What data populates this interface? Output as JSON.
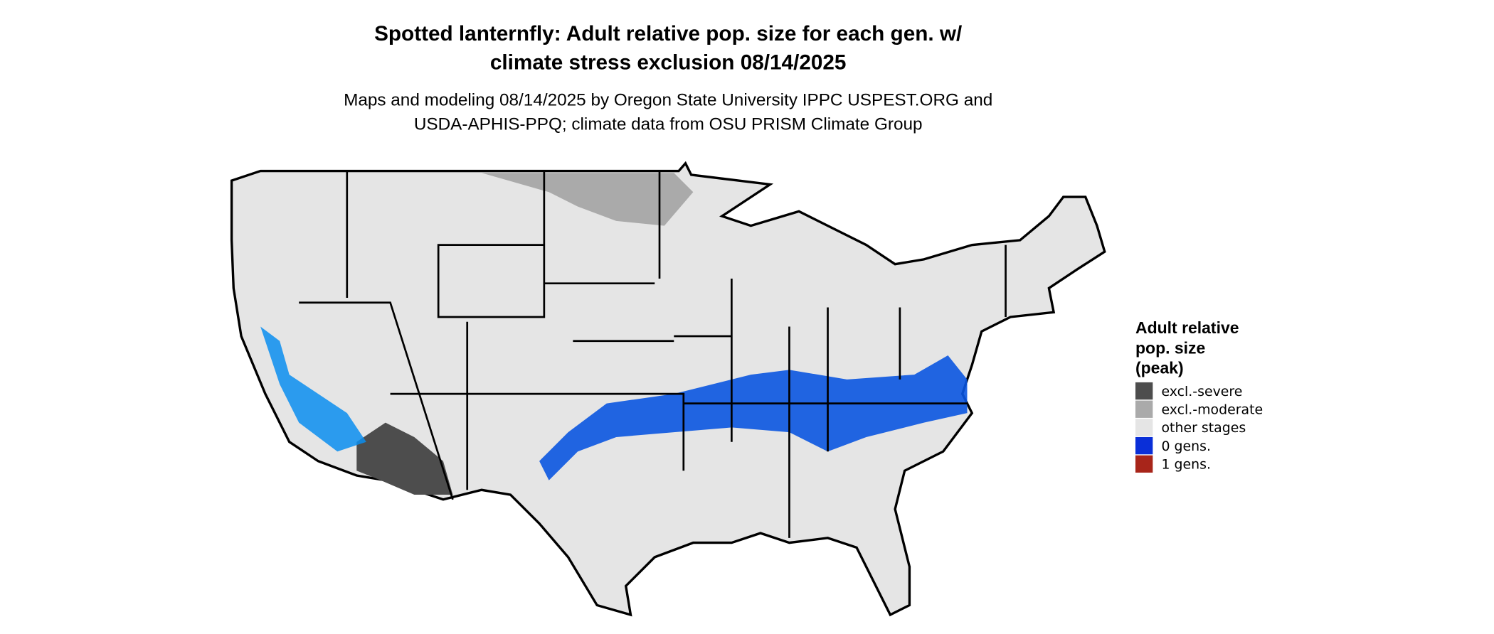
{
  "header": {
    "title_lines": [
      "Spotted lanternfly: Adult relative pop. size for each gen. w/",
      "climate stress exclusion 08/14/2025"
    ],
    "subtitle_lines": [
      "Maps and modeling 08/14/2025 by Oregon State University IPPC USPEST.ORG and",
      "USDA-APHIS-PPQ; climate data from OSU PRISM Climate Group"
    ]
  },
  "legend": {
    "title_lines": [
      "Adult relative",
      "pop. size",
      "(peak)"
    ],
    "items": [
      {
        "label": "excl.-severe",
        "color": "#4d4d4d"
      },
      {
        "label": "excl.-moderate",
        "color": "#aaaaaa"
      },
      {
        "label": "other stages",
        "color": "#e5e5e5"
      },
      {
        "label": "0 gens.",
        "color": "#0a2fd8"
      },
      {
        "label": "1 gens.",
        "color": "#a8251a"
      }
    ]
  }
}
